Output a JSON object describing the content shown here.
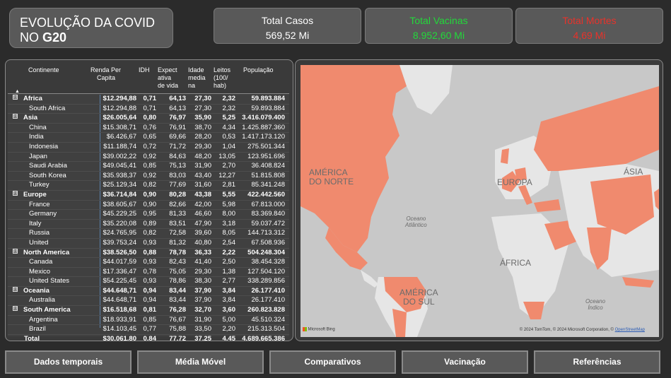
{
  "title": {
    "line1": "EVOLUÇÃO DA COVID",
    "line2_prefix": "NO ",
    "line2_bold": "G20"
  },
  "kpis": [
    {
      "label": "Total Casos",
      "value": "569,52 Mi",
      "color": "#ffffff"
    },
    {
      "label": "Total Vacinas",
      "value": "8.952,60 Mi",
      "color": "#22d93a"
    },
    {
      "label": "Total Mortes",
      "value": "4,69 Mi",
      "color": "#e8322a"
    }
  ],
  "table": {
    "headers": {
      "continent": "Continente",
      "renda": [
        "Renda Per",
        "Capita"
      ],
      "idh": "IDH",
      "expect": [
        "Expect",
        "ativa",
        "de vida"
      ],
      "age": [
        "Idade",
        "media",
        "na"
      ],
      "beds": [
        "Leitos",
        "(100/",
        "hab)"
      ],
      "pop": "População"
    },
    "rows": [
      {
        "kind": "group",
        "name": "Africa",
        "renda": "$12.294,88",
        "idh": "0,71",
        "exp": "64,13",
        "age": "27,30",
        "beds": "2,32",
        "pop": "59.893.884"
      },
      {
        "kind": "child",
        "name": "South Africa",
        "renda": "$12.294,88",
        "idh": "0,71",
        "exp": "64,13",
        "age": "27,30",
        "beds": "2,32",
        "pop": "59.893.884"
      },
      {
        "kind": "group",
        "name": "Asia",
        "renda": "$26.005,64",
        "idh": "0,80",
        "exp": "76,97",
        "age": "35,90",
        "beds": "5,25",
        "pop": "3.416.079.400"
      },
      {
        "kind": "child",
        "name": "China",
        "renda": "$15.308,71",
        "idh": "0,76",
        "exp": "76,91",
        "age": "38,70",
        "beds": "4,34",
        "pop": "1.425.887.360"
      },
      {
        "kind": "child",
        "name": "India",
        "renda": "$6.426,67",
        "idh": "0,65",
        "exp": "69,66",
        "age": "28,20",
        "beds": "0,53",
        "pop": "1.417.173.120"
      },
      {
        "kind": "child",
        "name": "Indonesia",
        "renda": "$11.188,74",
        "idh": "0,72",
        "exp": "71,72",
        "age": "29,30",
        "beds": "1,04",
        "pop": "275.501.344"
      },
      {
        "kind": "child",
        "name": "Japan",
        "renda": "$39.002,22",
        "idh": "0,92",
        "exp": "84,63",
        "age": "48,20",
        "beds": "13,05",
        "pop": "123.951.696"
      },
      {
        "kind": "child",
        "name": "Saudi Arabia",
        "renda": "$49.045,41",
        "idh": "0,85",
        "exp": "75,13",
        "age": "31,90",
        "beds": "2,70",
        "pop": "36.408.824"
      },
      {
        "kind": "child",
        "name": "South Korea",
        "renda": "$35.938,37",
        "idh": "0,92",
        "exp": "83,03",
        "age": "43,40",
        "beds": "12,27",
        "pop": "51.815.808"
      },
      {
        "kind": "child",
        "name": "Turkey",
        "renda": "$25.129,34",
        "idh": "0,82",
        "exp": "77,69",
        "age": "31,60",
        "beds": "2,81",
        "pop": "85.341.248"
      },
      {
        "kind": "group",
        "name": "Europe",
        "renda": "$36.714,84",
        "idh": "0,90",
        "exp": "80,28",
        "age": "43,38",
        "beds": "5,55",
        "pop": "422.442.560"
      },
      {
        "kind": "child",
        "name": "France",
        "renda": "$38.605,67",
        "idh": "0,90",
        "exp": "82,66",
        "age": "42,00",
        "beds": "5,98",
        "pop": "67.813.000"
      },
      {
        "kind": "child",
        "name": "Germany",
        "renda": "$45.229,25",
        "idh": "0,95",
        "exp": "81,33",
        "age": "46,60",
        "beds": "8,00",
        "pop": "83.369.840"
      },
      {
        "kind": "child",
        "name": "Italy",
        "renda": "$35.220,08",
        "idh": "0,89",
        "exp": "83,51",
        "age": "47,90",
        "beds": "3,18",
        "pop": "59.037.472"
      },
      {
        "kind": "child",
        "name": "Russia",
        "renda": "$24.765,95",
        "idh": "0,82",
        "exp": "72,58",
        "age": "39,60",
        "beds": "8,05",
        "pop": "144.713.312"
      },
      {
        "kind": "child",
        "name": "United",
        "renda": "$39.753,24",
        "idh": "0,93",
        "exp": "81,32",
        "age": "40,80",
        "beds": "2,54",
        "pop": "67.508.936"
      },
      {
        "kind": "group",
        "name": "North America",
        "renda": "$38.526,50",
        "idh": "0,88",
        "exp": "78,78",
        "age": "36,33",
        "beds": "2,22",
        "pop": "504.248.304"
      },
      {
        "kind": "child",
        "name": "Canada",
        "renda": "$44.017,59",
        "idh": "0,93",
        "exp": "82,43",
        "age": "41,40",
        "beds": "2,50",
        "pop": "38.454.328"
      },
      {
        "kind": "child",
        "name": "Mexico",
        "renda": "$17.336,47",
        "idh": "0,78",
        "exp": "75,05",
        "age": "29,30",
        "beds": "1,38",
        "pop": "127.504.120"
      },
      {
        "kind": "child",
        "name": "United States",
        "renda": "$54.225,45",
        "idh": "0,93",
        "exp": "78,86",
        "age": "38,30",
        "beds": "2,77",
        "pop": "338.289.856"
      },
      {
        "kind": "group",
        "name": "Oceania",
        "renda": "$44.648,71",
        "idh": "0,94",
        "exp": "83,44",
        "age": "37,90",
        "beds": "3,84",
        "pop": "26.177.410"
      },
      {
        "kind": "child",
        "name": "Australia",
        "renda": "$44.648,71",
        "idh": "0,94",
        "exp": "83,44",
        "age": "37,90",
        "beds": "3,84",
        "pop": "26.177.410"
      },
      {
        "kind": "group",
        "name": "South America",
        "renda": "$16.518,68",
        "idh": "0,81",
        "exp": "76,28",
        "age": "32,70",
        "beds": "3,60",
        "pop": "260.823.828"
      },
      {
        "kind": "child",
        "name": "Argentina",
        "renda": "$18.933,91",
        "idh": "0,85",
        "exp": "76,67",
        "age": "31,90",
        "beds": "5,00",
        "pop": "45.510.324"
      },
      {
        "kind": "child",
        "name": "Brazil",
        "renda": "$14.103,45",
        "idh": "0,77",
        "exp": "75,88",
        "age": "33,50",
        "beds": "2,20",
        "pop": "215.313.504"
      },
      {
        "kind": "total",
        "name": "Total",
        "renda": "$30.061,80",
        "idh": "0,84",
        "exp": "77,72",
        "age": "37,25",
        "beds": "4,45",
        "pop": "4.689.665.386"
      }
    ],
    "expand_glyph": "⊟",
    "sort_glyph": "▲"
  },
  "map": {
    "labels": {
      "north_america": [
        "AMÉRICA",
        "DO NORTE"
      ],
      "europe": "EUROPA",
      "asia": "ÁSIA",
      "africa": "ÁFRICA",
      "south_america": [
        "AMÉRICA",
        "DO SUL"
      ],
      "atlantic": [
        "Oceano",
        "Atlântico"
      ],
      "indian": [
        "Oceano",
        "Índico"
      ]
    },
    "brand": "Microsoft Bing",
    "copyright": "© 2024 TomTom, © 2024 Microsoft Corporation, ©",
    "osm": "OpenStreetMap",
    "highlight_color": "#f08a6e",
    "land_color": "#e6e6e6",
    "water_color": "#c8c8c8"
  },
  "nav": [
    "Dados temporais",
    "Média Móvel",
    "Comparativos",
    "Vacinação",
    "Referências"
  ]
}
